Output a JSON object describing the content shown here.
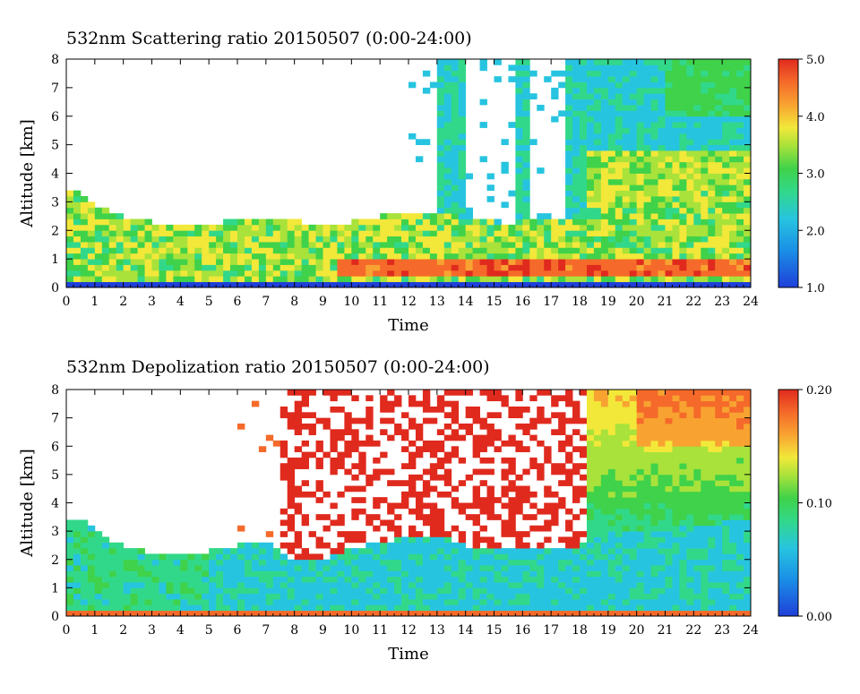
{
  "chart_data": [
    {
      "type": "heatmap",
      "title": "532nm Scattering ratio  20150507 (0:00-24:00)",
      "xlabel": "Time",
      "ylabel": "Altitude [km]",
      "xlim": [
        0,
        24
      ],
      "ylim": [
        0,
        8
      ],
      "x_ticks": [
        "0",
        "1",
        "2",
        "3",
        "4",
        "5",
        "6",
        "7",
        "8",
        "9",
        "10",
        "11",
        "12",
        "13",
        "14",
        "15",
        "16",
        "17",
        "18",
        "19",
        "20",
        "21",
        "22",
        "23",
        "24"
      ],
      "y_ticks": [
        "0",
        "1",
        "2",
        "3",
        "4",
        "5",
        "6",
        "7",
        "8"
      ],
      "colorbar": {
        "range": [
          1.0,
          5.0
        ],
        "ticks": [
          "1.0",
          "2.0",
          "3.0",
          "4.0",
          "5.0"
        ]
      },
      "features": {
        "boundary_layer_top_km": [
          [
            0,
            3.4
          ],
          [
            0.6,
            3.3
          ],
          [
            1,
            2.9
          ],
          [
            2,
            2.5
          ],
          [
            3,
            2.3
          ],
          [
            4,
            2.1
          ],
          [
            5,
            2.2
          ],
          [
            6,
            2.4
          ],
          [
            7,
            2.5
          ],
          [
            8,
            2.4
          ],
          [
            9,
            2.1
          ],
          [
            10,
            2.3
          ],
          [
            11,
            2.5
          ],
          [
            12,
            2.6
          ],
          [
            13,
            2.7
          ],
          [
            14,
            2.4
          ],
          [
            15,
            2.3
          ],
          [
            16,
            2.3
          ],
          [
            17,
            2.35
          ],
          [
            18,
            2.4
          ],
          [
            19,
            2.8
          ],
          [
            20,
            3.1
          ],
          [
            21,
            3.2
          ],
          [
            22,
            3.3
          ],
          [
            23,
            3.4
          ],
          [
            24,
            3.5
          ]
        ],
        "cloud_columns_h": [
          [
            13.1,
            14.0
          ],
          [
            15.7,
            16.0
          ],
          [
            16.0,
            16.2
          ],
          [
            17.5,
            17.9
          ],
          [
            18.0,
            18.2
          ]
        ],
        "high_ratio_band_km": [
          0.4,
          1.0
        ],
        "aerosol_layer_km_after_18h": [
          2.8,
          4.8
        ]
      }
    },
    {
      "type": "heatmap",
      "title": "532nm Depolization ratio  20150507 (0:00-24:00)",
      "xlabel": "Time",
      "ylabel": "Altitude [km]",
      "xlim": [
        0,
        24
      ],
      "ylim": [
        0,
        8
      ],
      "x_ticks": [
        "0",
        "1",
        "2",
        "3",
        "4",
        "5",
        "6",
        "7",
        "8",
        "9",
        "10",
        "11",
        "12",
        "13",
        "14",
        "15",
        "16",
        "17",
        "18",
        "19",
        "20",
        "21",
        "22",
        "23",
        "24"
      ],
      "y_ticks": [
        "0",
        "1",
        "2",
        "3",
        "4",
        "5",
        "6",
        "7",
        "8"
      ],
      "colorbar": {
        "range": [
          0.0,
          0.2
        ],
        "ticks": [
          "0.00",
          "0.10",
          "0.20"
        ]
      },
      "features": {
        "boundary_layer_top_km": [
          [
            0,
            3.4
          ],
          [
            0.6,
            3.5
          ],
          [
            1,
            3.0
          ],
          [
            2,
            2.5
          ],
          [
            3,
            2.2
          ],
          [
            4,
            2.1
          ],
          [
            5,
            2.3
          ],
          [
            6,
            2.5
          ],
          [
            7,
            2.6
          ],
          [
            8,
            2.0
          ],
          [
            9,
            2.0
          ],
          [
            10,
            2.4
          ],
          [
            11,
            2.6
          ],
          [
            12,
            2.8
          ],
          [
            13,
            2.9
          ],
          [
            14,
            2.5
          ],
          [
            15,
            2.4
          ],
          [
            16,
            2.4
          ],
          [
            17,
            2.4
          ],
          [
            18,
            2.5
          ],
          [
            19,
            2.9
          ],
          [
            20,
            3.0
          ],
          [
            21,
            3.1
          ],
          [
            22,
            3.2
          ],
          [
            23,
            3.3
          ],
          [
            24,
            3.4
          ]
        ],
        "high_depol_top_km_after_20h": [
          6.0,
          8.0
        ]
      }
    }
  ]
}
